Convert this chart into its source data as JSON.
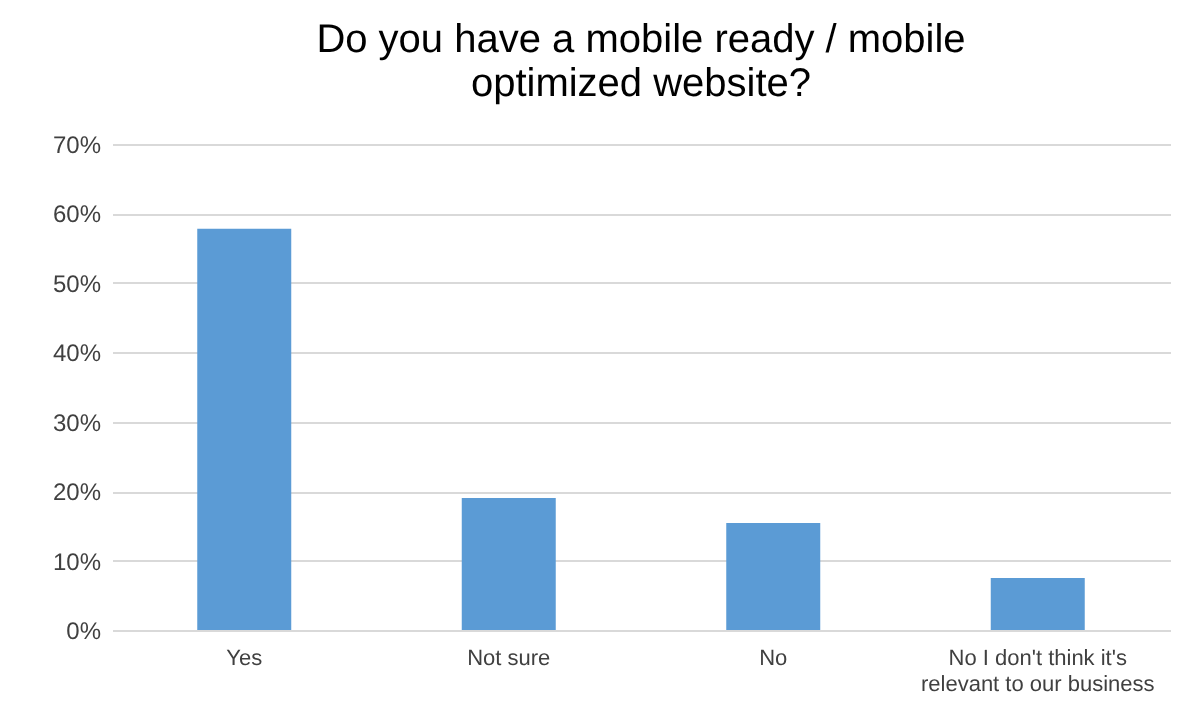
{
  "chart_data": {
    "type": "bar",
    "title": "Do you have a mobile ready / mobile optimized website?",
    "categories": [
      "Yes",
      "Not sure",
      "No",
      "No I don't think it's relevant to our business"
    ],
    "values": [
      57.8,
      19.0,
      15.4,
      7.5
    ],
    "color": "#5b9bd5",
    "ylim": [
      0,
      70
    ],
    "yticks": [
      {
        "value": 0,
        "label": "0%"
      },
      {
        "value": 10,
        "label": "10%"
      },
      {
        "value": 20,
        "label": "20%"
      },
      {
        "value": 30,
        "label": "30%"
      },
      {
        "value": 40,
        "label": "40%"
      },
      {
        "value": 50,
        "label": "50%"
      },
      {
        "value": 60,
        "label": "60%"
      },
      {
        "value": 70,
        "label": "70%"
      }
    ],
    "grid": "y"
  }
}
